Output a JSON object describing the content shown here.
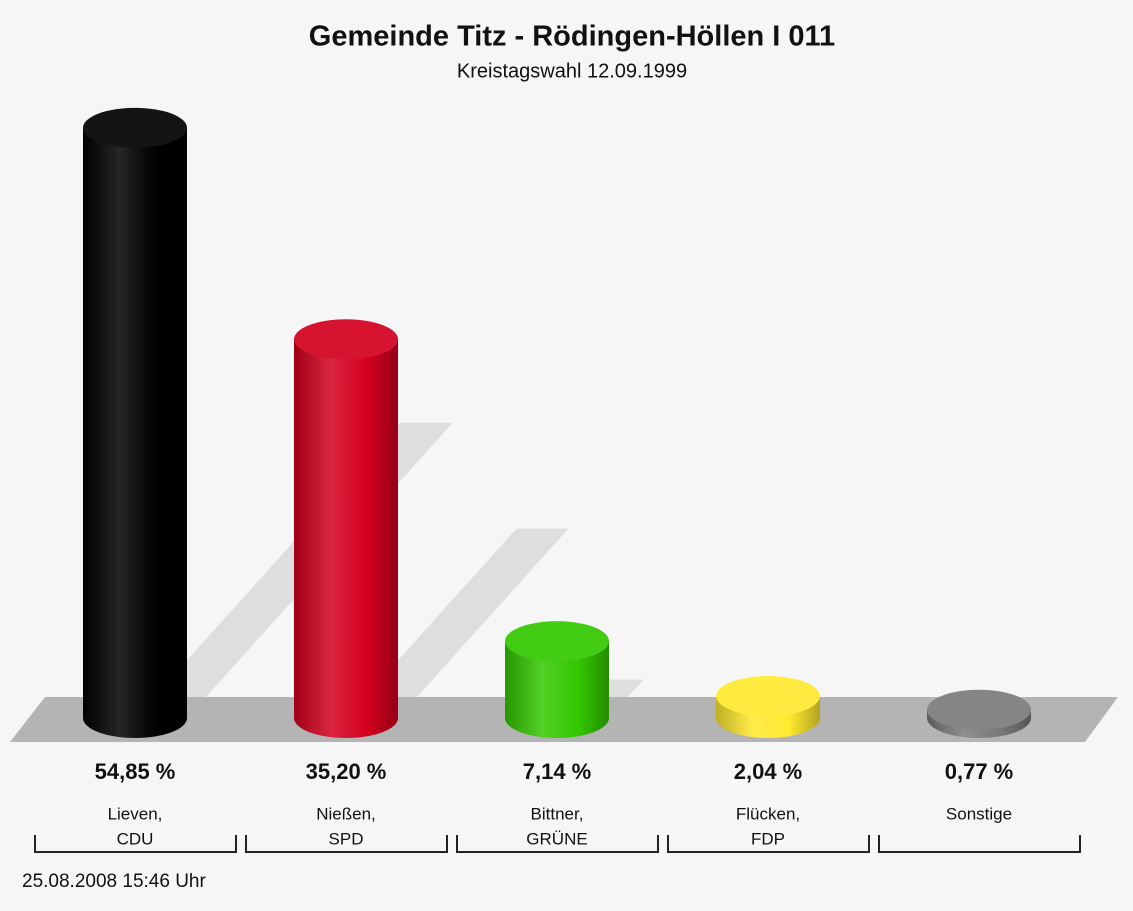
{
  "chart_data": {
    "type": "bar",
    "title": "Gemeinde Titz - Rödingen-Höllen I 011",
    "subtitle": "Kreistagswahl 12.09.1999",
    "categories": [
      [
        "Lieven,",
        "CDU"
      ],
      [
        "Nießen,",
        "SPD"
      ],
      [
        "Bittner,",
        "GRÜNE"
      ],
      [
        "Flücken,",
        "FDP"
      ],
      [
        "Sonstige"
      ]
    ],
    "values": [
      54.85,
      35.2,
      7.14,
      2.04,
      0.77
    ],
    "value_labels": [
      "54,85 %",
      "35,20 %",
      "7,14 %",
      "2,04 %",
      "0,77 %"
    ],
    "colors": [
      "#000000",
      "#d4001e",
      "#33c800",
      "#ffe92e",
      "#7a7a7a"
    ],
    "footer": "25.08.2008 15:46 Uhr"
  }
}
